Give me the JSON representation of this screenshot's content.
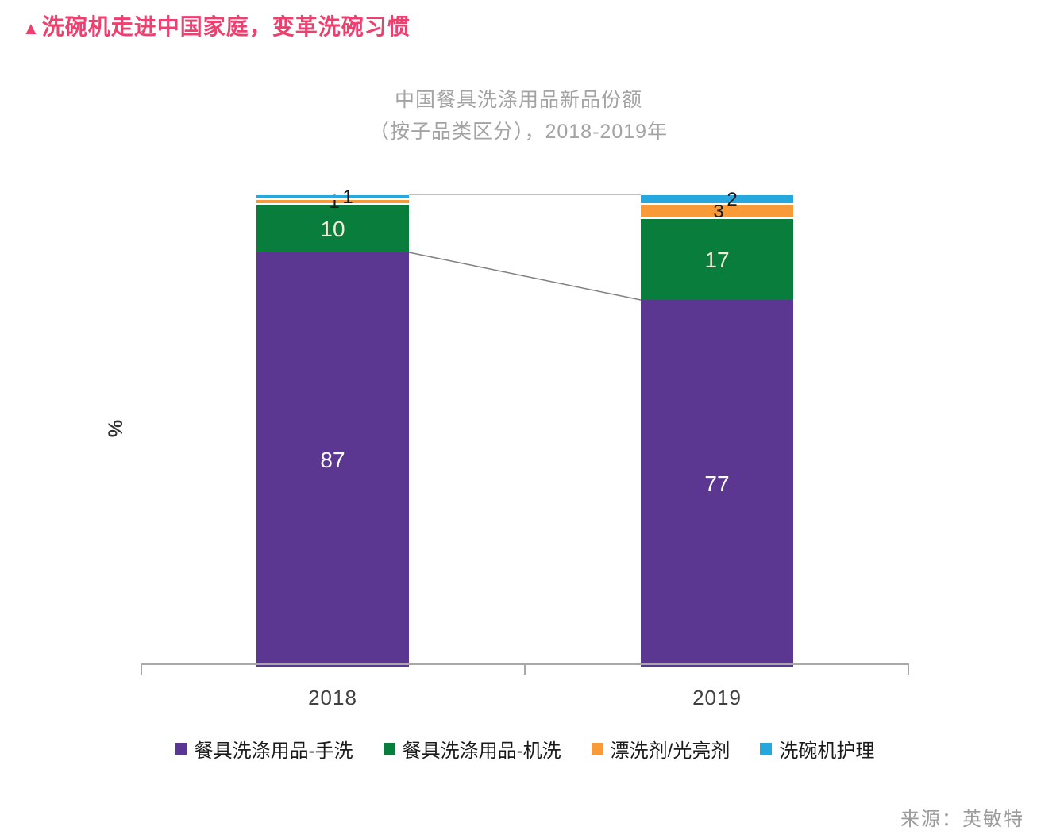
{
  "header": {
    "bullet": "▲",
    "title": "洗碗机走进中国家庭，变革洗碗习惯",
    "accent_color": "#EE3F6F"
  },
  "chart": {
    "title_line1": "中国餐具洗涤用品新品份额",
    "title_line2": "（按子品类区分），2018-2019年",
    "ylabel": "%",
    "source": "来源：英敏特"
  },
  "chart_data": {
    "type": "bar",
    "stacked": true,
    "unit": "%",
    "categories": [
      "2018",
      "2019"
    ],
    "series": [
      {
        "name": "餐具洗涤用品-手洗",
        "color": "#5C3792",
        "label_color": "#FFFFFF",
        "values": [
          87,
          77
        ]
      },
      {
        "name": "餐具洗涤用品-机洗",
        "color": "#087D3C",
        "label_color": "#EFEFD8",
        "values": [
          10,
          17
        ]
      },
      {
        "name": "漂洗剂/光亮剂",
        "color": "#F89A38",
        "label_color": "#1A1A1A",
        "values": [
          1,
          3
        ]
      },
      {
        "name": "洗碗机护理",
        "color": "#26A8DF",
        "label_color": "#1A1A1A",
        "values": [
          1,
          2
        ]
      }
    ],
    "title": "中国餐具洗涤用品新品份额（按子品类区分），2018-2019年",
    "xlabel": "",
    "ylabel": "%",
    "ylim": [
      0,
      100
    ],
    "grid": false,
    "legend_position": "bottom",
    "axis_color": "#A8A8A8",
    "connector_top_color": "#BFBFBF",
    "connector_mid_color": "#7F7F7F"
  }
}
